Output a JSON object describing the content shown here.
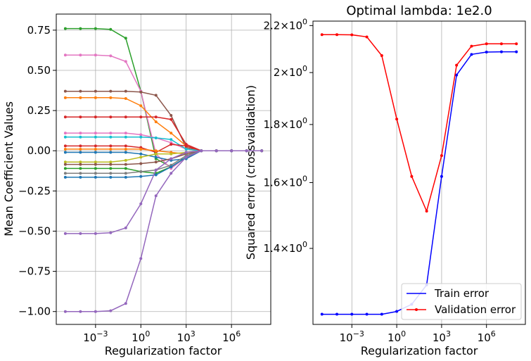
{
  "chart_data": [
    {
      "type": "line",
      "title": "",
      "xlabel": "Regularization factor",
      "ylabel": "Mean Coefficient Values",
      "xscale": "log",
      "x": [
        1e-05,
        0.0001,
        0.001,
        0.01,
        0.1,
        1,
        10,
        100,
        1000,
        10000,
        100000,
        1000000,
        10000000,
        100000000
      ],
      "xticks": [
        {
          "value": 0.001,
          "base": "10",
          "exp": "−3"
        },
        {
          "value": 1,
          "base": "10",
          "exp": "0"
        },
        {
          "value": 1000,
          "base": "10",
          "exp": "3"
        },
        {
          "value": 1000000,
          "base": "10",
          "exp": "6"
        }
      ],
      "yticks": [
        {
          "value": -1.0,
          "label": "−1.00"
        },
        {
          "value": -0.75,
          "label": "−0.75"
        },
        {
          "value": -0.5,
          "label": "−0.50"
        },
        {
          "value": -0.25,
          "label": "−0.25"
        },
        {
          "value": 0.0,
          "label": "0.00"
        },
        {
          "value": 0.25,
          "label": "0.25"
        },
        {
          "value": 0.5,
          "label": "0.50"
        },
        {
          "value": 0.75,
          "label": "0.75"
        }
      ],
      "ylim": [
        -1.08,
        0.85
      ],
      "grid": true,
      "series": [
        {
          "color": "#2ca02c",
          "values": [
            0.76,
            0.76,
            0.76,
            0.755,
            0.7,
            0.37,
            -0.05,
            -0.1,
            -0.04,
            0.0,
            0.0,
            0.0,
            0.0,
            0.0
          ]
        },
        {
          "color": "#e377c2",
          "values": [
            0.595,
            0.595,
            0.595,
            0.59,
            0.555,
            0.37,
            -0.02,
            -0.11,
            -0.04,
            0.0,
            0.0,
            0.0,
            0.0,
            0.0
          ]
        },
        {
          "color": "#8c564b",
          "values": [
            0.37,
            0.37,
            0.37,
            0.37,
            0.37,
            0.365,
            0.345,
            0.22,
            0.02,
            0.0,
            0.0,
            0.0,
            0.0,
            0.0
          ]
        },
        {
          "color": "#ff7f0e",
          "values": [
            0.33,
            0.33,
            0.33,
            0.33,
            0.325,
            0.28,
            0.18,
            0.11,
            0.03,
            0.0,
            0.0,
            0.0,
            0.0,
            0.0
          ]
        },
        {
          "color": "#d62728",
          "values": [
            0.21,
            0.21,
            0.21,
            0.21,
            0.21,
            0.21,
            0.21,
            0.195,
            0.04,
            0.0,
            0.0,
            0.0,
            0.0,
            0.0
          ]
        },
        {
          "color": "#e377c2",
          "values": [
            0.11,
            0.11,
            0.11,
            0.11,
            0.11,
            0.1,
            0.08,
            0.05,
            0.01,
            0.0,
            0.0,
            0.0,
            0.0,
            0.0
          ]
        },
        {
          "color": "#17becf",
          "values": [
            0.085,
            0.085,
            0.085,
            0.085,
            0.085,
            0.085,
            0.08,
            0.07,
            0.01,
            0.0,
            0.0,
            0.0,
            0.0,
            0.0
          ]
        },
        {
          "color": "#d62728",
          "values": [
            0.03,
            0.03,
            0.03,
            0.03,
            0.03,
            0.02,
            -0.01,
            0.04,
            0.03,
            0.0,
            0.0,
            0.0,
            0.0,
            0.0
          ]
        },
        {
          "color": "#ff7f0e",
          "values": [
            0.01,
            0.01,
            0.01,
            0.01,
            0.01,
            0.01,
            0.0,
            -0.01,
            -0.02,
            0.0,
            0.0,
            0.0,
            0.0,
            0.0
          ]
        },
        {
          "color": "#1f77b4",
          "values": [
            -0.01,
            -0.01,
            -0.01,
            -0.01,
            -0.01,
            -0.02,
            -0.04,
            -0.06,
            -0.05,
            0.0,
            0.0,
            0.0,
            0.0,
            0.0
          ]
        },
        {
          "color": "#bcbd22",
          "values": [
            -0.07,
            -0.07,
            -0.07,
            -0.07,
            -0.06,
            -0.04,
            -0.02,
            -0.02,
            -0.01,
            0.0,
            0.0,
            0.0,
            0.0,
            0.0
          ]
        },
        {
          "color": "#8c564b",
          "values": [
            -0.085,
            -0.085,
            -0.085,
            -0.085,
            -0.085,
            -0.08,
            -0.07,
            -0.05,
            -0.02,
            0.0,
            0.0,
            0.0,
            0.0,
            0.0
          ]
        },
        {
          "color": "#2ca02c",
          "values": [
            -0.11,
            -0.11,
            -0.11,
            -0.11,
            -0.11,
            -0.13,
            -0.14,
            -0.1,
            -0.04,
            0.0,
            0.0,
            0.0,
            0.0,
            0.0
          ]
        },
        {
          "color": "#7f7f7f",
          "values": [
            -0.14,
            -0.14,
            -0.14,
            -0.14,
            -0.14,
            -0.13,
            -0.12,
            -0.09,
            -0.03,
            0.0,
            0.0,
            0.0,
            0.0,
            0.0
          ]
        },
        {
          "color": "#1f77b4",
          "values": [
            -0.165,
            -0.165,
            -0.165,
            -0.165,
            -0.165,
            -0.16,
            -0.15,
            -0.1,
            -0.04,
            0.0,
            0.0,
            0.0,
            0.0,
            0.0
          ]
        },
        {
          "color": "#9467bd",
          "values": [
            -0.515,
            -0.515,
            -0.515,
            -0.51,
            -0.48,
            -0.33,
            -0.12,
            -0.05,
            -0.01,
            0.0,
            0.0,
            0.0,
            0.0,
            0.0
          ]
        },
        {
          "color": "#9467bd",
          "values": [
            -1.0,
            -1.0,
            -1.0,
            -0.995,
            -0.95,
            -0.67,
            -0.28,
            -0.14,
            -0.04,
            0.0,
            0.0,
            0.0,
            0.0,
            0.0
          ]
        }
      ]
    },
    {
      "type": "line",
      "title": "Optimal lambda: 1e2.0",
      "xlabel": "Regularization factor",
      "ylabel": "Squared error (crossvalidation)",
      "xscale": "log",
      "yscale": "log",
      "x": [
        1e-05,
        0.0001,
        0.001,
        0.01,
        0.1,
        1,
        10,
        100,
        1000,
        10000,
        100000,
        1000000,
        10000000,
        100000000
      ],
      "xticks": [
        {
          "value": 0.001,
          "base": "10",
          "exp": "−3"
        },
        {
          "value": 1,
          "base": "10",
          "exp": "0"
        },
        {
          "value": 1000,
          "base": "10",
          "exp": "3"
        },
        {
          "value": 1000000,
          "base": "10",
          "exp": "6"
        }
      ],
      "yticks": [
        {
          "value": 1.4,
          "mant": "1.4",
          "base": "10",
          "exp": "0"
        },
        {
          "value": 1.6,
          "mant": "1.6",
          "base": "10",
          "exp": "0"
        },
        {
          "value": 1.8,
          "mant": "1.8",
          "base": "10",
          "exp": "0"
        },
        {
          "value": 2.0,
          "mant": "2",
          "base": "10",
          "exp": "0"
        },
        {
          "value": 2.2,
          "mant": "2.2",
          "base": "10",
          "exp": "0"
        }
      ],
      "ylim": [
        1.2,
        2.22
      ],
      "grid": "x",
      "legend": "lower-right",
      "series": [
        {
          "name": "Train error",
          "color": "#0000ff",
          "values": [
            1.225,
            1.225,
            1.225,
            1.225,
            1.225,
            1.232,
            1.25,
            1.3,
            1.62,
            1.99,
            2.075,
            2.085,
            2.086,
            2.086
          ]
        },
        {
          "name": "Validation error",
          "color": "#ff0000",
          "values": [
            2.16,
            2.16,
            2.159,
            2.15,
            2.07,
            1.82,
            1.62,
            1.51,
            1.69,
            2.03,
            2.11,
            2.12,
            2.12,
            2.12
          ]
        }
      ]
    }
  ]
}
